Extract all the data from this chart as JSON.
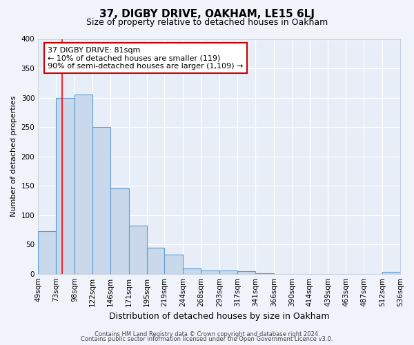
{
  "title": "37, DIGBY DRIVE, OAKHAM, LE15 6LJ",
  "subtitle": "Size of property relative to detached houses in Oakham",
  "xlabel": "Distribution of detached houses by size in Oakham",
  "ylabel": "Number of detached properties",
  "bin_edges": [
    49,
    73,
    98,
    122,
    146,
    171,
    195,
    219,
    244,
    268,
    293,
    317,
    341,
    366,
    390,
    414,
    439,
    463,
    487,
    512,
    536
  ],
  "bin_labels": [
    "49sqm",
    "73sqm",
    "98sqm",
    "122sqm",
    "146sqm",
    "171sqm",
    "195sqm",
    "219sqm",
    "244sqm",
    "268sqm",
    "293sqm",
    "317sqm",
    "341sqm",
    "366sqm",
    "390sqm",
    "414sqm",
    "439sqm",
    "463sqm",
    "487sqm",
    "512sqm",
    "536sqm"
  ],
  "counts": [
    72,
    300,
    305,
    250,
    145,
    82,
    44,
    32,
    9,
    5,
    6,
    4,
    1,
    0,
    0,
    0,
    0,
    0,
    0,
    3
  ],
  "bar_color": "#c9d9eb",
  "bar_edge_color": "#5b9bd5",
  "red_line_x": 81,
  "ylim": [
    0,
    400
  ],
  "yticks": [
    0,
    50,
    100,
    150,
    200,
    250,
    300,
    350,
    400
  ],
  "annotation_title": "37 DIGBY DRIVE: 81sqm",
  "annotation_line1": "← 10% of detached houses are smaller (119)",
  "annotation_line2": "90% of semi-detached houses are larger (1,109) →",
  "footer1": "Contains HM Land Registry data © Crown copyright and database right 2024.",
  "footer2": "Contains public sector information licensed under the Open Government Licence v3.0.",
  "bg_color": "#f0f4fa",
  "plot_bg_color": "#e8eef7",
  "grid_color": "#ffffff",
  "annotation_box_color": "#ffffff",
  "annotation_box_edge": "#cc0000"
}
